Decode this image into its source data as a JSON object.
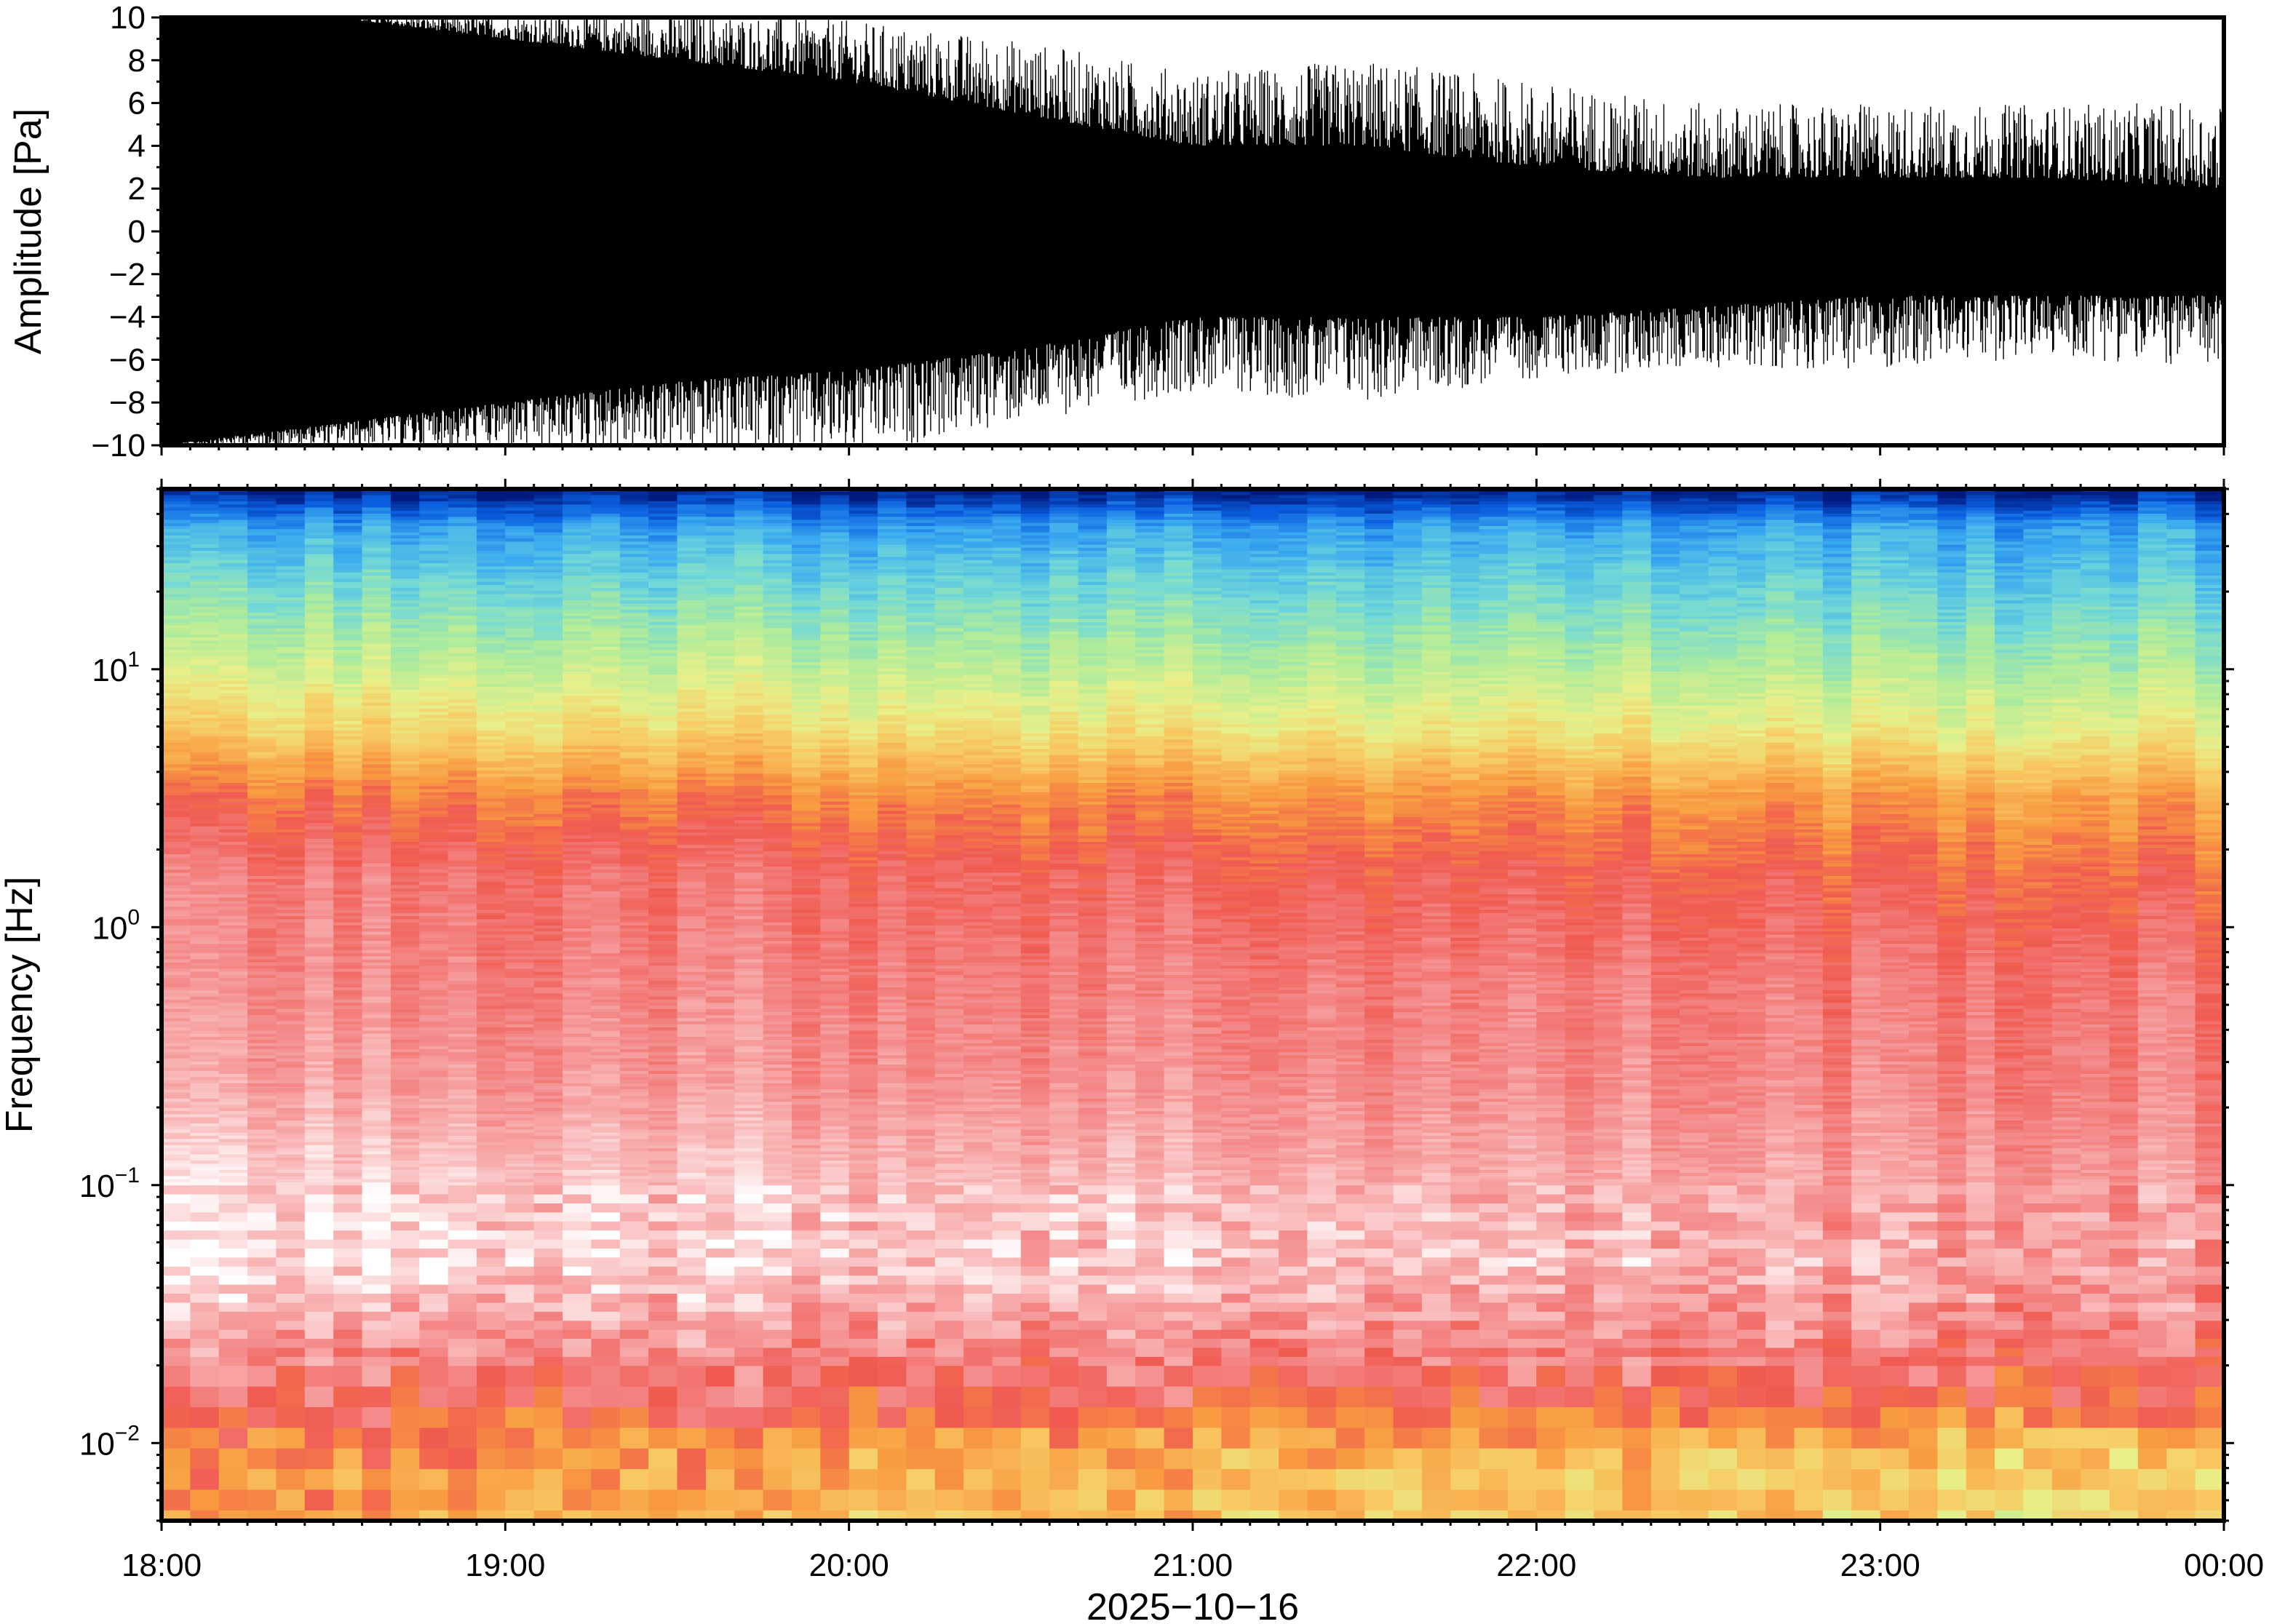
{
  "chart_data": [
    {
      "type": "line",
      "panel": "waveform",
      "ylabel": "Amplitude [Pa]",
      "ylim": [
        -10,
        10
      ],
      "yticks": [
        -10,
        -8,
        -6,
        -4,
        -2,
        0,
        2,
        4,
        6,
        8,
        10
      ],
      "yticklabels": [
        "−10",
        "−8",
        "−6",
        "−4",
        "−2",
        "0",
        "2",
        "4",
        "6",
        "8",
        "10"
      ],
      "xlim": [
        "18:00",
        "00:00"
      ],
      "series_color": "#000000",
      "envelope_hours": [
        18.0,
        18.5,
        19.0,
        19.5,
        20.0,
        20.5,
        21.0,
        21.5,
        22.0,
        22.5,
        23.0,
        23.5,
        24.0
      ],
      "envelope_upper": [
        10,
        10,
        10,
        10,
        9.5,
        8.5,
        7,
        7.5,
        6.5,
        5.5,
        5.5,
        5.5,
        5.5
      ],
      "envelope_lower": [
        -10,
        -10,
        -10,
        -10,
        -10,
        -8.5,
        -7,
        -7.5,
        -6.5,
        -6,
        -6,
        -5.5,
        -6
      ],
      "dense_upper": [
        10,
        10,
        9,
        8,
        7,
        5.5,
        4,
        4,
        3,
        2.5,
        2.5,
        2.5,
        2
      ],
      "dense_lower": [
        -10,
        -9,
        -8,
        -7,
        -6.5,
        -5.5,
        -4,
        -4,
        -4,
        -3.5,
        -3,
        -3,
        -3
      ]
    },
    {
      "type": "heatmap",
      "panel": "spectrogram",
      "ylabel": "Frequency [Hz]",
      "xlabel": "2025−10−16",
      "yscale": "log",
      "ylim": [
        0.005,
        50
      ],
      "yticks": [
        0.01,
        0.1,
        1,
        10
      ],
      "yticklabels": [
        [
          "10",
          "−2"
        ],
        [
          "10",
          "−1"
        ],
        [
          "10",
          "0"
        ],
        [
          "10",
          "1"
        ]
      ],
      "xticklabels": [
        "18:00",
        "19:00",
        "20:00",
        "21:00",
        "22:00",
        "23:00",
        "00:00"
      ],
      "x_hours": [
        18,
        19,
        20,
        21,
        22,
        23,
        24
      ],
      "colormap": "rainbow-white",
      "colormap_stops": [
        "#001a80",
        "#0a5fe0",
        "#3aaaf0",
        "#70d8d8",
        "#b0ec9a",
        "#e8f08a",
        "#f8c860",
        "#f89a40",
        "#f05a50",
        "#f48a8a",
        "#fac0c0",
        "#ffffff"
      ],
      "profile_log10_freq": [
        1.7,
        1.55,
        1.3,
        1.0,
        0.75,
        0.5,
        0.2,
        -0.2,
        -0.6,
        -1.0,
        -1.3,
        -1.6,
        -1.85,
        -2.0,
        -2.3
      ],
      "profile_level_start": [
        0.0,
        0.18,
        0.3,
        0.42,
        0.54,
        0.7,
        0.8,
        0.82,
        0.86,
        0.95,
        0.98,
        0.85,
        0.75,
        0.68,
        0.62
      ],
      "profile_level_end": [
        0.0,
        0.18,
        0.26,
        0.36,
        0.46,
        0.62,
        0.7,
        0.78,
        0.8,
        0.84,
        0.86,
        0.8,
        0.72,
        0.55,
        0.5
      ]
    }
  ]
}
